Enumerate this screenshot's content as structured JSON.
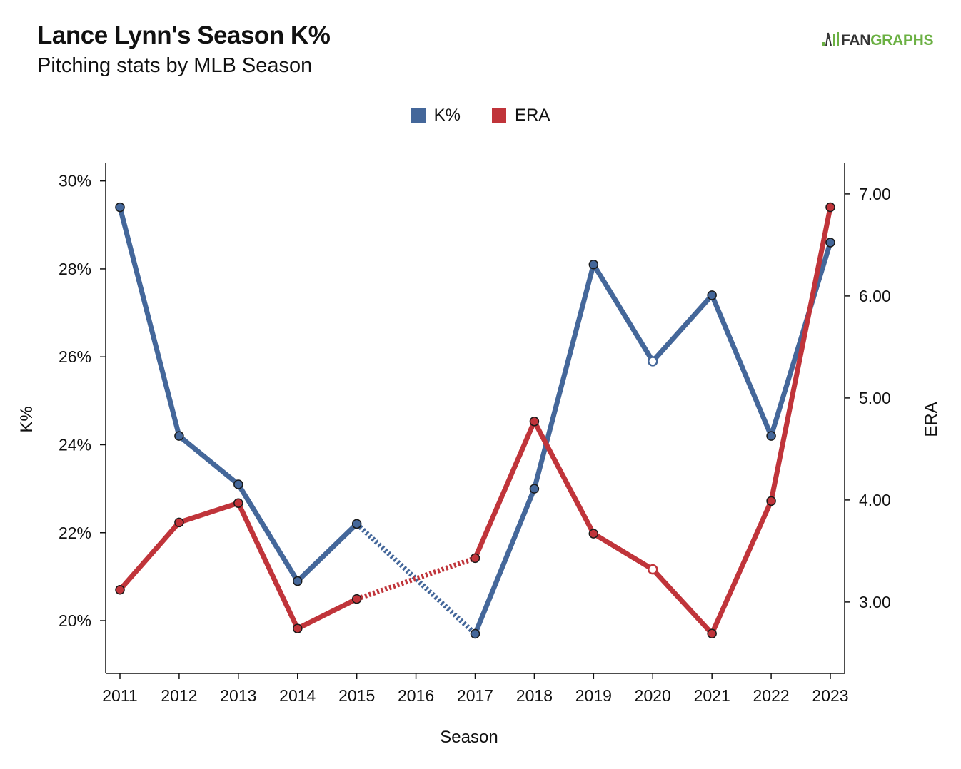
{
  "header": {
    "title": "Lance Lynn's Season K%",
    "subtitle": "Pitching stats by MLB Season"
  },
  "brand": {
    "icon": "fangraphs-logo-icon",
    "name_part1": "FAN",
    "name_part2": "GRAPHS",
    "accent_color": "#6bb043"
  },
  "chart_data": {
    "type": "line",
    "xlabel": "Season",
    "ylabel_left": "K%",
    "ylabel_right": "ERA",
    "legend_position": "top-center",
    "grid": false,
    "x": [
      2011,
      2012,
      2013,
      2014,
      2015,
      2016,
      2017,
      2018,
      2019,
      2020,
      2021,
      2022,
      2023
    ],
    "x_ticks": [
      "2011",
      "2012",
      "2013",
      "2014",
      "2015",
      "2016",
      "2017",
      "2018",
      "2019",
      "2020",
      "2021",
      "2022",
      "2023"
    ],
    "y_left": {
      "range": [
        18.8,
        30.4
      ],
      "ticks": [
        20,
        22,
        24,
        26,
        28,
        30
      ],
      "tick_labels": [
        "20%",
        "22%",
        "24%",
        "26%",
        "28%",
        "30%"
      ]
    },
    "y_right": {
      "range": [
        2.3,
        7.3
      ],
      "ticks": [
        3,
        4,
        5,
        6,
        7
      ],
      "tick_labels": [
        "3.00",
        "4.00",
        "5.00",
        "6.00",
        "7.00"
      ]
    },
    "series": [
      {
        "name": "K%",
        "axis": "left",
        "color": "#44679a",
        "points": [
          {
            "x": 2011,
            "y": 29.4
          },
          {
            "x": 2012,
            "y": 24.2
          },
          {
            "x": 2013,
            "y": 23.1
          },
          {
            "x": 2014,
            "y": 20.9
          },
          {
            "x": 2015,
            "y": 22.2
          },
          {
            "x": 2017,
            "y": 19.7
          },
          {
            "x": 2018,
            "y": 23.0
          },
          {
            "x": 2019,
            "y": 28.1
          },
          {
            "x": 2020,
            "y": 25.9,
            "hollow": true
          },
          {
            "x": 2021,
            "y": 27.4
          },
          {
            "x": 2022,
            "y": 24.2
          },
          {
            "x": 2023,
            "y": 28.6
          }
        ]
      },
      {
        "name": "ERA",
        "axis": "right",
        "color": "#c0343a",
        "points": [
          {
            "x": 2011,
            "y": 3.12
          },
          {
            "x": 2012,
            "y": 3.78
          },
          {
            "x": 2013,
            "y": 3.97
          },
          {
            "x": 2014,
            "y": 2.74
          },
          {
            "x": 2015,
            "y": 3.03
          },
          {
            "x": 2017,
            "y": 3.43
          },
          {
            "x": 2018,
            "y": 4.77
          },
          {
            "x": 2019,
            "y": 3.67
          },
          {
            "x": 2020,
            "y": 3.32,
            "hollow": true
          },
          {
            "x": 2021,
            "y": 2.69
          },
          {
            "x": 2022,
            "y": 3.99
          },
          {
            "x": 2023,
            "y": 6.87
          }
        ]
      }
    ],
    "gap_years": [
      2016
    ],
    "gap_style": "dotted"
  }
}
